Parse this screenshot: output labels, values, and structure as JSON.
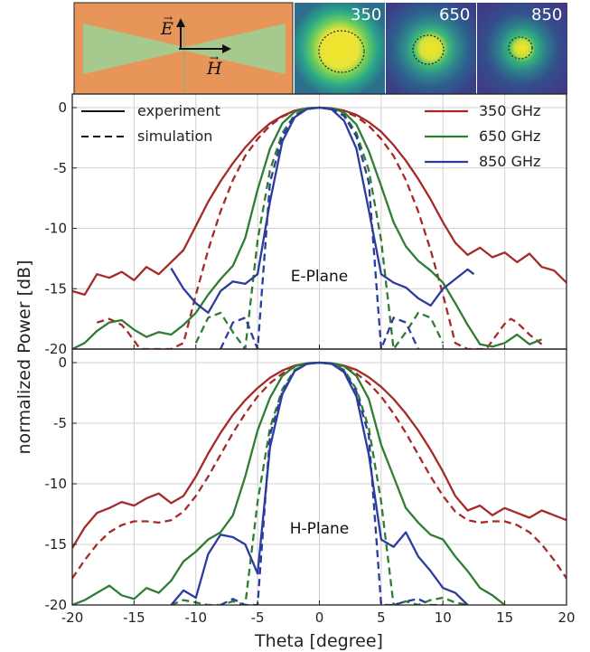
{
  "inset": {
    "e_label": "E",
    "h_label": "H",
    "beam_labels": [
      "350",
      "650",
      "850"
    ],
    "colors": {
      "orange": "#e8955a",
      "horn": "#9fcf92",
      "viridis_bg": "#2c6e8c",
      "viridis_mid": "#34b56f",
      "viridis_hot": "#f4e627"
    }
  },
  "chart_data": [
    {
      "type": "line",
      "annotation": "E-Plane",
      "xlim": [
        -20,
        20
      ],
      "ylim": [
        -20,
        0
      ],
      "xticks": [
        -20,
        -15,
        -10,
        -5,
        0,
        5,
        10,
        15,
        20
      ],
      "yticks": [
        0,
        -5,
        -10,
        -15,
        -20
      ],
      "grid": true,
      "legend_style": {
        "position": "top-left",
        "entries": [
          {
            "label": "experiment",
            "dash": "solid"
          },
          {
            "label": "simulation",
            "dash": "dashed"
          }
        ]
      },
      "legend_freq": {
        "position": "top-right",
        "entries": [
          {
            "label": "350 GHz",
            "color": "#a52a2a"
          },
          {
            "label": "650 GHz",
            "color": "#2e7d32"
          },
          {
            "label": "850 GHz",
            "color": "#2c3c9e"
          }
        ]
      },
      "series": [
        {
          "freq": "350 GHz",
          "kind": "experiment",
          "color": "#a52a2a",
          "x": [
            -20,
            -19,
            -18,
            -17,
            -16,
            -15,
            -14,
            -13,
            -12,
            -11,
            -10,
            -9,
            -8,
            -7,
            -6,
            -5,
            -4,
            -3,
            -2,
            -1,
            0,
            1,
            2,
            3,
            4,
            5,
            6,
            7,
            8,
            9,
            10,
            11,
            12,
            13,
            14,
            15,
            16,
            17,
            18,
            19,
            20
          ],
          "y": [
            -15.2,
            -15.5,
            -13.8,
            -14.1,
            -13.6,
            -14.3,
            -13.2,
            -13.8,
            -12.8,
            -11.8,
            -9.8,
            -7.8,
            -6.1,
            -4.6,
            -3.3,
            -2.2,
            -1.3,
            -0.7,
            -0.25,
            -0.05,
            0,
            -0.05,
            -0.25,
            -0.6,
            -1.2,
            -2.0,
            -3.1,
            -4.4,
            -5.9,
            -7.6,
            -9.5,
            -11.2,
            -12.2,
            -11.6,
            -12.4,
            -12.0,
            -12.8,
            -12.1,
            -13.2,
            -13.5,
            -14.5
          ]
        },
        {
          "freq": "350 GHz",
          "kind": "simulation",
          "color": "#a52a2a",
          "x": [
            -18,
            -17,
            -16,
            -15.5,
            -15,
            -14.5,
            -14,
            -13,
            -12,
            -11,
            -10,
            -9,
            -8,
            -7,
            -6,
            -5,
            -4,
            -3,
            -2,
            -1,
            0,
            1,
            2,
            3,
            4,
            5,
            6,
            7,
            8,
            9,
            10,
            11,
            12,
            13,
            13.5,
            14,
            14.5,
            15,
            15.5,
            16,
            17,
            18
          ],
          "y": [
            -17.8,
            -17.5,
            -18.0,
            -18.6,
            -19.3,
            -20,
            -20,
            -20,
            -20,
            -19.5,
            -15.5,
            -11.8,
            -8.6,
            -6.0,
            -4.0,
            -2.6,
            -1.5,
            -0.75,
            -0.3,
            -0.08,
            0,
            -0.08,
            -0.3,
            -0.75,
            -1.5,
            -2.6,
            -4.0,
            -6.0,
            -8.6,
            -11.8,
            -15.5,
            -19.5,
            -20,
            -20,
            -20,
            -19.3,
            -18.6,
            -17.9,
            -17.5,
            -17.8,
            -18.8,
            -19.6
          ]
        },
        {
          "freq": "650 GHz",
          "kind": "experiment",
          "color": "#2e7d32",
          "x": [
            -20,
            -19,
            -18,
            -17,
            -16,
            -15,
            -14,
            -13,
            -12,
            -11,
            -10,
            -9,
            -8,
            -7,
            -6,
            -5,
            -4,
            -3,
            -2,
            -1,
            0,
            1,
            2,
            3,
            4,
            5,
            6,
            7,
            8,
            9,
            10,
            11,
            12,
            13,
            14,
            15,
            16,
            17,
            18
          ],
          "y": [
            -20,
            -19.5,
            -18.5,
            -17.8,
            -17.6,
            -18.4,
            -19.0,
            -18.6,
            -18.8,
            -18.0,
            -17.0,
            -15.5,
            -14.2,
            -13.1,
            -10.8,
            -6.8,
            -3.4,
            -1.3,
            -0.35,
            -0.05,
            0,
            -0.05,
            -0.4,
            -1.4,
            -3.6,
            -6.5,
            -9.5,
            -11.5,
            -12.7,
            -13.5,
            -14.5,
            -16.2,
            -18.0,
            -19.6,
            -19.8,
            -19.5,
            -18.8,
            -19.6,
            -19.2
          ]
        },
        {
          "freq": "650 GHz",
          "kind": "simulation",
          "color": "#2e7d32",
          "x": [
            -10,
            -9,
            -8,
            -7,
            -6,
            -5,
            -4,
            -3,
            -2,
            -1,
            0,
            1,
            2,
            3,
            4,
            5,
            6,
            7,
            8,
            9,
            10
          ],
          "y": [
            -19.5,
            -17.4,
            -17.0,
            -18.6,
            -20,
            -11.0,
            -5.2,
            -2.1,
            -0.6,
            -0.1,
            0,
            -0.1,
            -0.6,
            -2.1,
            -5.2,
            -11.0,
            -20,
            -18.6,
            -17.0,
            -17.4,
            -19.5
          ]
        },
        {
          "freq": "850 GHz",
          "kind": "experiment",
          "color": "#2c3c9e",
          "x": [
            -12,
            -11,
            -10,
            -9,
            -8,
            -7,
            -6,
            -5,
            -4,
            -3,
            -2,
            -1,
            0,
            1,
            2,
            3,
            4,
            5,
            6,
            7,
            8,
            9,
            10,
            11,
            12,
            12.5
          ],
          "y": [
            -13.3,
            -15.0,
            -16.2,
            -17.0,
            -15.2,
            -14.4,
            -14.6,
            -13.8,
            -7.8,
            -2.8,
            -0.8,
            -0.12,
            0,
            -0.15,
            -1.1,
            -3.4,
            -8.5,
            -13.8,
            -14.5,
            -14.9,
            -15.8,
            -16.4,
            -15.0,
            -14.2,
            -13.4,
            -13.8
          ]
        },
        {
          "freq": "850 GHz",
          "kind": "simulation",
          "color": "#2c3c9e",
          "x": [
            -8,
            -7,
            -6,
            -5,
            -4,
            -3,
            -2,
            -1,
            0,
            1,
            2,
            3,
            4,
            5,
            6,
            7,
            8
          ],
          "y": [
            -20,
            -17.8,
            -17.4,
            -20,
            -6.2,
            -2.4,
            -0.7,
            -0.1,
            0,
            -0.1,
            -0.7,
            -2.4,
            -6.2,
            -20,
            -17.4,
            -17.8,
            -20
          ]
        }
      ]
    },
    {
      "type": "line",
      "annotation": "H-Plane",
      "xlabel": "Theta [degree]",
      "ylabel": "normalized Power [dB]",
      "xlim": [
        -20,
        20
      ],
      "ylim": [
        -20,
        0
      ],
      "xticks": [
        -20,
        -15,
        -10,
        -5,
        0,
        5,
        10,
        15,
        20
      ],
      "yticks": [
        0,
        -5,
        -10,
        -15,
        -20
      ],
      "grid": true,
      "series": [
        {
          "freq": "350 GHz",
          "kind": "experiment",
          "color": "#a52a2a",
          "x": [
            -20,
            -19,
            -18,
            -17,
            -16,
            -15,
            -14,
            -13,
            -12,
            -11,
            -10,
            -9,
            -8,
            -7,
            -6,
            -5,
            -4,
            -3,
            -2,
            -1,
            0,
            1,
            2,
            3,
            4,
            5,
            6,
            7,
            8,
            9,
            10,
            11,
            12,
            13,
            14,
            15,
            16,
            17,
            18,
            19,
            20
          ],
          "y": [
            -15.3,
            -13.6,
            -12.4,
            -12.0,
            -11.5,
            -11.8,
            -11.2,
            -10.8,
            -11.6,
            -11.0,
            -9.4,
            -7.5,
            -5.8,
            -4.3,
            -3.1,
            -2.1,
            -1.25,
            -0.65,
            -0.25,
            -0.05,
            0,
            -0.05,
            -0.25,
            -0.6,
            -1.2,
            -2.0,
            -3.0,
            -4.2,
            -5.6,
            -7.2,
            -9.0,
            -11.0,
            -12.2,
            -11.8,
            -12.6,
            -12.0,
            -12.4,
            -12.8,
            -12.2,
            -12.6,
            -13.0
          ]
        },
        {
          "freq": "350 GHz",
          "kind": "simulation",
          "color": "#a52a2a",
          "x": [
            -20,
            -19,
            -18,
            -17,
            -16,
            -15,
            -14,
            -13,
            -12,
            -11,
            -10,
            -9,
            -8,
            -7,
            -6,
            -5,
            -4,
            -3,
            -2,
            -1,
            0,
            1,
            2,
            3,
            4,
            5,
            6,
            7,
            8,
            9,
            10,
            11,
            12,
            13,
            14,
            15,
            16,
            17,
            18,
            19,
            20
          ],
          "y": [
            -17.8,
            -16.3,
            -15.0,
            -14.0,
            -13.4,
            -13.1,
            -13.1,
            -13.2,
            -13.0,
            -12.3,
            -11.0,
            -9.4,
            -7.6,
            -5.8,
            -4.2,
            -2.8,
            -1.7,
            -0.9,
            -0.35,
            -0.08,
            0,
            -0.08,
            -0.35,
            -0.9,
            -1.7,
            -2.8,
            -4.2,
            -5.8,
            -7.6,
            -9.4,
            -11.0,
            -12.3,
            -13.0,
            -13.2,
            -13.1,
            -13.1,
            -13.4,
            -14.0,
            -15.0,
            -16.3,
            -17.8
          ]
        },
        {
          "freq": "650 GHz",
          "kind": "experiment",
          "color": "#2e7d32",
          "x": [
            -20,
            -19,
            -18,
            -17,
            -16,
            -15,
            -14,
            -13,
            -12,
            -11,
            -10,
            -9,
            -8,
            -7,
            -6,
            -5,
            -4,
            -3,
            -2,
            -1,
            0,
            1,
            2,
            3,
            4,
            5,
            6,
            7,
            8,
            9,
            10,
            11,
            12,
            13,
            14,
            15
          ],
          "y": [
            -20,
            -19.6,
            -19.0,
            -18.4,
            -19.2,
            -19.5,
            -18.6,
            -19.0,
            -18.0,
            -16.4,
            -15.6,
            -14.6,
            -14.0,
            -12.6,
            -9.4,
            -5.6,
            -2.9,
            -1.1,
            -0.3,
            -0.05,
            0,
            -0.05,
            -0.3,
            -1.1,
            -3.0,
            -6.8,
            -9.4,
            -12.0,
            -13.2,
            -14.2,
            -14.6,
            -16.0,
            -17.2,
            -18.6,
            -19.2,
            -20
          ]
        },
        {
          "freq": "650 GHz",
          "kind": "simulation",
          "color": "#2e7d32",
          "x": [
            -12,
            -11,
            -10,
            -9,
            -8,
            -7,
            -6,
            -5,
            -4,
            -3,
            -2,
            -1,
            0,
            1,
            2,
            3,
            4,
            5,
            6,
            7,
            8,
            9,
            10,
            11,
            12
          ],
          "y": [
            -20,
            -19.6,
            -19.8,
            -20,
            -20,
            -19.7,
            -20,
            -11.5,
            -5.4,
            -2.2,
            -0.6,
            -0.1,
            0,
            -0.1,
            -0.6,
            -2.2,
            -5.4,
            -11.5,
            -20,
            -19.7,
            -20,
            -19.6,
            -19.4,
            -19.8,
            -20
          ]
        },
        {
          "freq": "850 GHz",
          "kind": "experiment",
          "color": "#2c3c9e",
          "x": [
            -12,
            -11,
            -10,
            -9,
            -8,
            -7,
            -6,
            -5,
            -4,
            -3,
            -2,
            -1,
            0,
            1,
            2,
            3,
            4,
            5,
            6,
            7,
            8,
            9,
            10,
            11,
            12
          ],
          "y": [
            -20,
            -18.8,
            -19.4,
            -15.8,
            -14.2,
            -14.4,
            -15.0,
            -17.4,
            -7.0,
            -2.6,
            -0.7,
            -0.1,
            0,
            -0.1,
            -0.8,
            -2.8,
            -7.6,
            -14.6,
            -15.2,
            -14.0,
            -16.0,
            -17.2,
            -18.6,
            -19.0,
            -20
          ]
        },
        {
          "freq": "850 GHz",
          "kind": "simulation",
          "color": "#2c3c9e",
          "x": [
            -8,
            -7,
            -6,
            -5,
            -4,
            -3,
            -2,
            -1,
            0,
            1,
            2,
            3,
            4,
            5,
            6,
            7,
            8,
            9,
            10
          ],
          "y": [
            -20,
            -19.5,
            -20,
            -20,
            -6.0,
            -2.4,
            -0.7,
            -0.1,
            0,
            -0.1,
            -0.7,
            -2.4,
            -6.0,
            -20,
            -20,
            -19.7,
            -19.5,
            -20,
            -20
          ]
        }
      ]
    }
  ]
}
